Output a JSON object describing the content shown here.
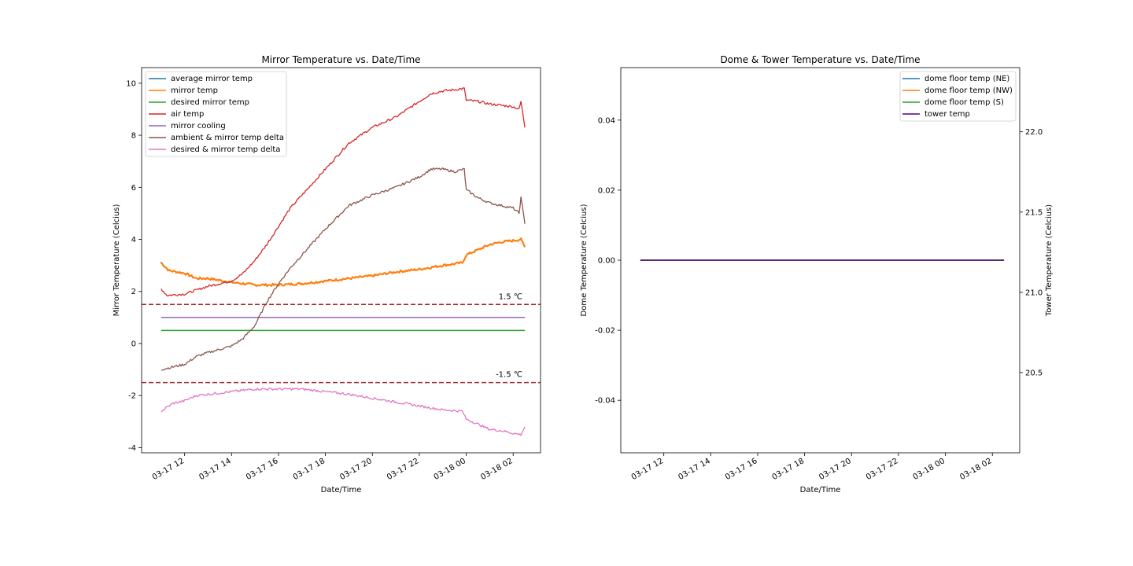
{
  "chart_data": [
    {
      "type": "line",
      "title": "Mirror Temperature vs. Date/Time",
      "xlabel": "Date/Time",
      "ylabel": "Mirror Temperature (Celcius)",
      "xlim": [
        "2023-03-17T10:10",
        "2023-03-18T03:10"
      ],
      "ylim": [
        -4.2,
        10.6
      ],
      "x_ticks": [
        "03-17 12",
        "03-17 14",
        "03-17 16",
        "03-17 18",
        "03-17 20",
        "03-17 22",
        "03-18 00",
        "03-18 02"
      ],
      "y_ticks": [
        -4,
        -2,
        0,
        2,
        4,
        6,
        8,
        10
      ],
      "grid": false,
      "legend_position": "upper-left",
      "series": [
        {
          "name": "average mirror temp",
          "color": "#1f77b4",
          "x": [
            "2023-03-17T11:00"
          ],
          "y": [
            3.1
          ]
        },
        {
          "name": "mirror temp",
          "color": "#ff7f0e",
          "x": [
            "2023-03-17T11:00",
            "2023-03-17T11:20",
            "2023-03-17T12:00",
            "2023-03-17T12:30",
            "2023-03-17T13:00",
            "2023-03-17T14:00",
            "2023-03-17T14:30",
            "2023-03-17T15:00",
            "2023-03-17T16:00",
            "2023-03-17T17:00",
            "2023-03-17T18:00",
            "2023-03-17T19:00",
            "2023-03-17T20:00",
            "2023-03-17T21:00",
            "2023-03-17T22:00",
            "2023-03-17T23:00",
            "2023-03-17T23:50",
            "2023-03-18T00:00",
            "2023-03-18T00:30",
            "2023-03-18T01:00",
            "2023-03-18T01:30",
            "2023-03-18T02:00",
            "2023-03-18T02:20",
            "2023-03-18T02:30"
          ],
          "y": [
            3.1,
            2.8,
            2.7,
            2.5,
            2.5,
            2.35,
            2.3,
            2.25,
            2.25,
            2.3,
            2.4,
            2.5,
            2.6,
            2.75,
            2.85,
            3.0,
            3.1,
            3.4,
            3.6,
            3.8,
            3.9,
            3.95,
            4.0,
            3.7
          ]
        },
        {
          "name": "desired mirror temp",
          "color": "#2ca02c",
          "x": [
            "2023-03-17T11:00",
            "2023-03-18T02:30"
          ],
          "y": [
            0.5,
            0.5
          ]
        },
        {
          "name": "air temp",
          "color": "#d62728",
          "x": [
            "2023-03-17T11:00",
            "2023-03-17T11:15",
            "2023-03-17T12:00",
            "2023-03-17T13:00",
            "2023-03-17T14:00",
            "2023-03-17T14:30",
            "2023-03-17T15:00",
            "2023-03-17T15:30",
            "2023-03-17T16:00",
            "2023-03-17T16:30",
            "2023-03-17T17:00",
            "2023-03-17T18:00",
            "2023-03-17T19:00",
            "2023-03-17T20:00",
            "2023-03-17T21:00",
            "2023-03-17T22:00",
            "2023-03-17T22:30",
            "2023-03-17T23:00",
            "2023-03-17T23:30",
            "2023-03-17T23:55",
            "2023-03-18T00:00",
            "2023-03-18T00:30",
            "2023-03-18T01:00",
            "2023-03-18T01:30",
            "2023-03-18T02:00",
            "2023-03-18T02:15",
            "2023-03-18T02:20",
            "2023-03-18T02:30"
          ],
          "y": [
            2.1,
            1.85,
            1.9,
            2.2,
            2.4,
            2.7,
            3.2,
            3.8,
            4.5,
            5.2,
            5.7,
            6.7,
            7.7,
            8.3,
            8.7,
            9.3,
            9.6,
            9.7,
            9.75,
            9.8,
            9.35,
            9.3,
            9.2,
            9.15,
            9.1,
            9.0,
            9.3,
            8.3
          ]
        },
        {
          "name": "mirror cooling",
          "color": "#9467bd",
          "x": [
            "2023-03-17T11:00",
            "2023-03-18T02:30"
          ],
          "y": [
            1.0,
            1.0
          ]
        },
        {
          "name": "ambient & mirror temp delta",
          "color": "#8c564b",
          "x": [
            "2023-03-17T11:00",
            "2023-03-17T12:00",
            "2023-03-17T12:30",
            "2023-03-17T13:00",
            "2023-03-17T14:00",
            "2023-03-17T14:30",
            "2023-03-17T15:00",
            "2023-03-17T15:30",
            "2023-03-17T16:00",
            "2023-03-17T16:30",
            "2023-03-17T17:00",
            "2023-03-17T18:00",
            "2023-03-17T19:00",
            "2023-03-17T20:00",
            "2023-03-17T21:00",
            "2023-03-17T22:00",
            "2023-03-17T22:30",
            "2023-03-17T23:00",
            "2023-03-17T23:30",
            "2023-03-17T23:55",
            "2023-03-18T00:00",
            "2023-03-18T00:30",
            "2023-03-18T01:00",
            "2023-03-18T01:30",
            "2023-03-18T02:00",
            "2023-03-18T02:15",
            "2023-03-18T02:20",
            "2023-03-18T02:30"
          ],
          "y": [
            -1.0,
            -0.8,
            -0.5,
            -0.35,
            -0.1,
            0.2,
            0.7,
            1.6,
            2.3,
            2.9,
            3.4,
            4.4,
            5.3,
            5.7,
            6.0,
            6.4,
            6.7,
            6.7,
            6.6,
            6.7,
            5.9,
            5.6,
            5.4,
            5.3,
            5.2,
            5.0,
            5.6,
            4.6
          ]
        },
        {
          "name": "desired & mirror temp delta",
          "color": "#e377c2",
          "x": [
            "2023-03-17T11:00",
            "2023-03-17T11:30",
            "2023-03-17T12:00",
            "2023-03-17T12:30",
            "2023-03-17T13:00",
            "2023-03-17T14:00",
            "2023-03-17T15:00",
            "2023-03-17T16:00",
            "2023-03-17T17:00",
            "2023-03-17T18:00",
            "2023-03-17T19:00",
            "2023-03-17T20:00",
            "2023-03-17T21:00",
            "2023-03-17T22:00",
            "2023-03-17T23:00",
            "2023-03-17T23:50",
            "2023-03-18T00:00",
            "2023-03-18T00:30",
            "2023-03-18T01:00",
            "2023-03-18T01:30",
            "2023-03-18T02:00",
            "2023-03-18T02:20",
            "2023-03-18T02:30"
          ],
          "y": [
            -2.6,
            -2.3,
            -2.2,
            -2.0,
            -1.95,
            -1.85,
            -1.75,
            -1.75,
            -1.75,
            -1.85,
            -1.95,
            -2.1,
            -2.25,
            -2.4,
            -2.55,
            -2.6,
            -2.9,
            -3.1,
            -3.3,
            -3.35,
            -3.45,
            -3.5,
            -3.2
          ]
        }
      ],
      "reference_lines": [
        {
          "y": 1.5,
          "label": "1.5 ℃",
          "color": "#a52a2a",
          "style": "dashed"
        },
        {
          "y": -1.5,
          "label": "-1.5 ℃",
          "color": "#a52a2a",
          "style": "dashed"
        }
      ]
    },
    {
      "type": "line",
      "title": "Dome & Tower Temperature vs. Date/Time",
      "xlabel": "Date/Time",
      "ylabel": "Dome Temperature (Celcius)",
      "ylabel_right": "Tower Temperature (Celcius)",
      "xlim": [
        "2023-03-17T10:10",
        "2023-03-18T03:10"
      ],
      "ylim": [
        -0.055,
        0.055
      ],
      "ylim_right": [
        20.0,
        22.4
      ],
      "x_ticks": [
        "03-17 12",
        "03-17 14",
        "03-17 16",
        "03-17 18",
        "03-17 20",
        "03-17 22",
        "03-18 00",
        "03-18 02"
      ],
      "y_ticks": [
        -0.04,
        -0.02,
        0.0,
        0.02,
        0.04
      ],
      "y_ticks_right": [
        20.5,
        21.0,
        21.5,
        22.0
      ],
      "grid": false,
      "legend_position": "upper-right",
      "series": [
        {
          "name": "dome floor temp (NE)",
          "color": "#1f77b4",
          "axis": "left",
          "x": [
            "2023-03-17T11:00",
            "2023-03-18T02:30"
          ],
          "y": [
            0.0,
            0.0
          ]
        },
        {
          "name": "dome floor temp (NW)",
          "color": "#ff7f0e",
          "axis": "left",
          "x": [
            "2023-03-17T11:00",
            "2023-03-18T02:30"
          ],
          "y": [
            0.0,
            0.0
          ]
        },
        {
          "name": "dome floor temp (S)",
          "color": "#2ca02c",
          "axis": "left",
          "x": [
            "2023-03-17T11:00",
            "2023-03-18T02:30"
          ],
          "y": [
            0.0,
            0.0
          ]
        },
        {
          "name": "tower temp",
          "color": "#4b0082",
          "axis": "right",
          "x": [
            "2023-03-17T11:00",
            "2023-03-18T02:30"
          ],
          "y": [
            21.2,
            21.2
          ]
        }
      ]
    }
  ]
}
